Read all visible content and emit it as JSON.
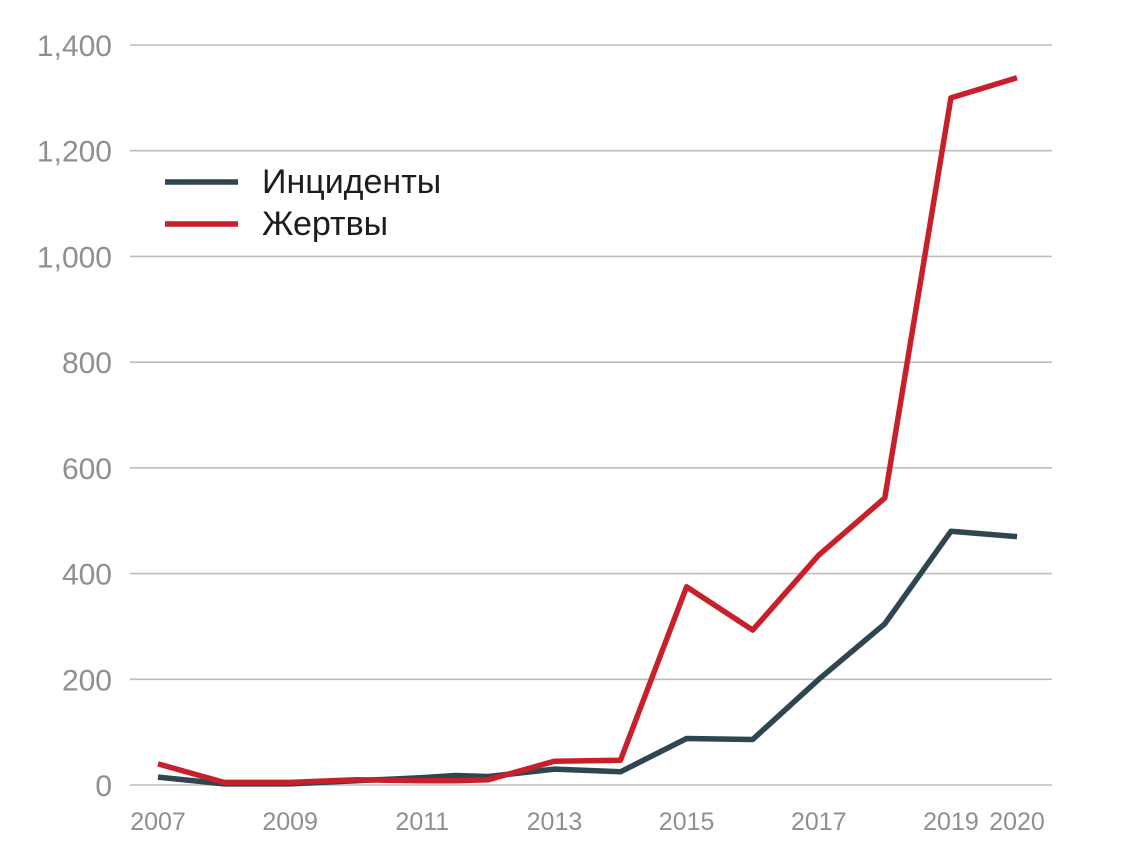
{
  "chart_data": {
    "type": "line",
    "title": "",
    "xlabel": "",
    "ylabel": "",
    "x": [
      2007,
      2008,
      2009,
      2010,
      2011,
      2012,
      2013,
      2014,
      2015,
      2016,
      2017,
      2018,
      2019,
      2020
    ],
    "x_tick_labels": [
      "2007",
      "2009",
      "2011",
      "2013",
      "2015",
      "2017",
      "2019",
      "2020"
    ],
    "x_tick_values": [
      2007,
      2009,
      2011,
      2013,
      2015,
      2017,
      2019,
      2020
    ],
    "y_tick_labels": [
      "0",
      "200",
      "400",
      "600",
      "800",
      "1,000",
      "1,200",
      "1,400"
    ],
    "y_tick_values": [
      0,
      200,
      400,
      600,
      800,
      1000,
      1200,
      1400
    ],
    "xlim": [
      2007,
      2020
    ],
    "ylim": [
      0,
      1400
    ],
    "grid": "horizontal",
    "legend_position": "top-left",
    "series": [
      {
        "name": "Инциденты",
        "color": "#2f4550",
        "points": [
          [
            2007,
            15
          ],
          [
            2008,
            2
          ],
          [
            2009,
            2
          ],
          [
            2010,
            8
          ],
          [
            2011,
            14
          ],
          [
            2011.5,
            18
          ],
          [
            2012,
            16
          ],
          [
            2013,
            30
          ],
          [
            2014,
            25
          ],
          [
            2015,
            88
          ],
          [
            2016,
            86
          ],
          [
            2017,
            200
          ],
          [
            2018,
            305
          ],
          [
            2019,
            480
          ],
          [
            2020,
            470
          ]
        ]
      },
      {
        "name": "Жертвы",
        "color": "#c8202b",
        "points": [
          [
            2007,
            40
          ],
          [
            2008,
            5
          ],
          [
            2009,
            5
          ],
          [
            2010,
            10
          ],
          [
            2011,
            8
          ],
          [
            2011.5,
            8
          ],
          [
            2012,
            10
          ],
          [
            2013,
            45
          ],
          [
            2014,
            47
          ],
          [
            2015,
            375
          ],
          [
            2016,
            293
          ],
          [
            2017,
            435
          ],
          [
            2018,
            543
          ],
          [
            2019,
            1300
          ],
          [
            2020,
            1338
          ]
        ]
      }
    ]
  }
}
